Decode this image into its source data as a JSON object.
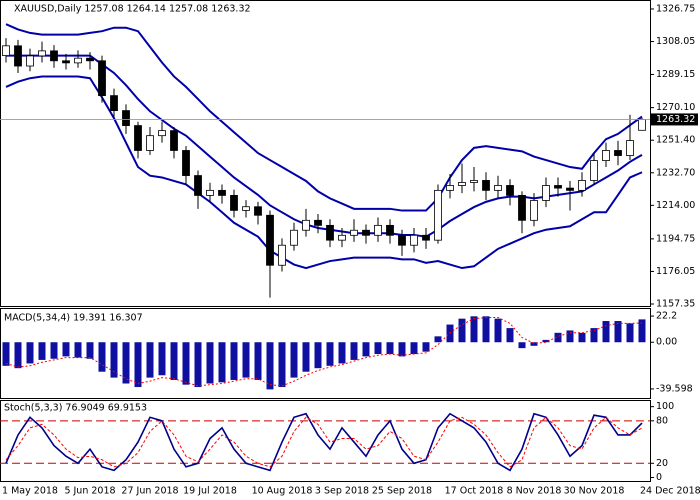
{
  "chart_data": [
    {
      "type": "candlestick",
      "title": "XAUUSD,Daily  1257.08 1264.14 1257.08 1263.32",
      "categories": [
        null,
        null,
        "1 May 2018",
        null,
        null,
        null,
        null,
        "5 Jun 2018",
        null,
        null,
        null,
        null,
        "27 Jun 2018",
        null,
        null,
        null,
        null,
        "19 Jul 2018",
        null,
        null,
        null,
        null,
        null,
        "10 Aug 2018",
        null,
        null,
        null,
        null,
        "3 Sep 2018",
        null,
        null,
        null,
        null,
        "25 Sep 2018",
        null,
        null,
        null,
        null,
        null,
        "17 Oct 2018",
        null,
        null,
        null,
        null,
        "8 Nov 2018",
        null,
        null,
        null,
        null,
        "30 Nov 2018",
        null,
        null,
        null,
        "24 Dec 2018"
      ],
      "open": [
        1300,
        1305.6,
        1294.0,
        1299.8,
        1302.7,
        1297.0,
        1295.8,
        1298.5,
        1297.0,
        1277.0,
        1268.4,
        1259.8,
        1245.5,
        1254.0,
        1256.9,
        1245.5,
        1231.1,
        1219.7,
        1222.6,
        1219.7,
        1211.1,
        1213.2,
        1208.3,
        1179.6,
        1191.1,
        1199.7,
        1205.4,
        1202.5,
        1194.0,
        1196.8,
        1199.7,
        1196.8,
        1202.5,
        1196.8,
        1191.1,
        1196.8,
        1194.0,
        1222.6,
        1225.4,
        1227.1,
        1228.3,
        1222.6,
        1225.4,
        1219.7,
        1205.4,
        1216.8,
        1225.4,
        1223.9,
        1222.6,
        1228.3,
        1239.7,
        1245.5,
        1242.6,
        1257.08
      ],
      "high": [
        1310,
        1309,
        1304,
        1308,
        1306,
        1301,
        1303,
        1302,
        1300,
        1281,
        1272,
        1262,
        1259,
        1262,
        1259,
        1248,
        1234,
        1227,
        1226,
        1223,
        1217,
        1216,
        1211,
        1195,
        1204,
        1212,
        1209,
        1206,
        1201,
        1206,
        1203,
        1207,
        1206,
        1200,
        1201,
        1201,
        1226,
        1232,
        1238,
        1236,
        1233,
        1231,
        1229,
        1222,
        1221,
        1230,
        1230,
        1228,
        1233,
        1244,
        1250,
        1251,
        1266,
        1264.14
      ],
      "low": [
        1296,
        1290,
        1291,
        1296,
        1293,
        1292,
        1293,
        1292,
        1273,
        1264,
        1255,
        1241,
        1243,
        1250,
        1241,
        1226,
        1212,
        1216,
        1215,
        1207,
        1207,
        1203,
        1161,
        1176,
        1188,
        1196,
        1198,
        1190,
        1190,
        1193,
        1192,
        1193,
        1192,
        1185,
        1187,
        1189,
        1192,
        1218,
        1221,
        1222,
        1217,
        1218,
        1214,
        1198,
        1202,
        1213,
        1219,
        1211,
        1219,
        1226,
        1236,
        1237,
        1240,
        1257.08
      ],
      "close": [
        1305.6,
        1294.0,
        1299.8,
        1302.7,
        1297.0,
        1295.8,
        1298.5,
        1297.0,
        1277.0,
        1268.4,
        1259.8,
        1245.5,
        1254.0,
        1256.9,
        1245.5,
        1231.1,
        1219.7,
        1222.6,
        1219.7,
        1211.1,
        1213.2,
        1208.3,
        1179.6,
        1191.1,
        1199.7,
        1205.4,
        1202.5,
        1194.0,
        1196.8,
        1199.7,
        1196.8,
        1202.5,
        1196.8,
        1191.1,
        1196.8,
        1194.0,
        1222.6,
        1225.4,
        1227.1,
        1228.3,
        1222.6,
        1225.4,
        1219.7,
        1205.4,
        1216.8,
        1225.4,
        1223.9,
        1222.6,
        1228.3,
        1239.7,
        1245.5,
        1242.6,
        1251.2,
        1263.32
      ],
      "bands": [
        {
          "color": "#0000a8",
          "values": [
            1318,
            1315,
            1313,
            1312,
            1312,
            1312,
            1312,
            1313,
            1314,
            1316,
            1316,
            1314,
            1305,
            1296,
            1288,
            1282,
            1275,
            1268,
            1262,
            1256,
            1250,
            1244,
            1240,
            1236,
            1232,
            1228,
            1222,
            1218,
            1215,
            1212,
            1212,
            1212,
            1212,
            1211,
            1211,
            1211,
            1218,
            1230,
            1240,
            1247,
            1248,
            1247,
            1246,
            1245,
            1242,
            1240,
            1238,
            1236,
            1235,
            1244,
            1252,
            1255,
            1260,
            1265
          ]
        },
        {
          "color": "#0000a8",
          "values": [
            1300,
            1300,
            1300,
            1300,
            1300,
            1300,
            1300,
            1300,
            1295,
            1290,
            1283,
            1275,
            1268,
            1263,
            1258,
            1254,
            1248,
            1242,
            1236,
            1230,
            1225,
            1220,
            1214,
            1210,
            1206,
            1203,
            1201,
            1200,
            1199,
            1198,
            1198,
            1198,
            1198,
            1197,
            1197,
            1196,
            1200,
            1205,
            1209,
            1213,
            1216,
            1218,
            1219,
            1219,
            1218,
            1219,
            1220,
            1221,
            1222,
            1226,
            1230,
            1234,
            1239,
            1243
          ]
        },
        {
          "color": "#0000a8",
          "values": [
            1282,
            1285,
            1287,
            1288,
            1288,
            1288,
            1288,
            1287,
            1276,
            1264,
            1250,
            1236,
            1231,
            1230,
            1228,
            1226,
            1221,
            1216,
            1210,
            1204,
            1200,
            1196,
            1188,
            1184,
            1180,
            1178,
            1180,
            1182,
            1183,
            1184,
            1184,
            1184,
            1184,
            1183,
            1183,
            1181,
            1182,
            1180,
            1178,
            1179,
            1184,
            1189,
            1192,
            1195,
            1198,
            1200,
            1201,
            1202,
            1206,
            1210,
            1210,
            1220,
            1230,
            1233
          ]
        }
      ],
      "last_price": 1263.32,
      "ylim": [
        1156.2,
        1331.33
      ],
      "yticks": [
        1326.75,
        1308.05,
        1289.15,
        {
          "value": 1270.1,
          "label": "1270.10"
        },
        {
          "value": 1251.4,
          "label": "1251.40"
        },
        {
          "value": 1232.7,
          "label": "1232.70"
        },
        {
          "value": 1214,
          "label": "1214.00"
        },
        1194.75,
        1176.05,
        1157.35
      ]
    },
    {
      "type": "macd",
      "title": "MACD(5,34,4) 19.391 16.307",
      "color": "#1010a0",
      "values": [
        -20,
        -22,
        -18,
        -15,
        -14,
        -12,
        -13,
        -14,
        -25,
        -30,
        -35,
        -38,
        -30,
        -28,
        -32,
        -36,
        -38,
        -35,
        -34,
        -32,
        -30,
        -32,
        -40,
        -38,
        -30,
        -25,
        -22,
        -20,
        -18,
        -15,
        -12,
        -10,
        -10,
        -12,
        -10,
        -8,
        5,
        15,
        20,
        22,
        22,
        20,
        12,
        -5,
        -3,
        2,
        8,
        10,
        8,
        12,
        18,
        18,
        16,
        19.391
      ],
      "signal": {
        "color": "#ff0000",
        "values": [
          -18,
          -21,
          -20,
          -17,
          -15,
          -13,
          -13,
          -13,
          -19,
          -25,
          -31,
          -35,
          -33,
          -30,
          -31,
          -34,
          -37,
          -36,
          -35,
          -33,
          -31,
          -31,
          -36,
          -37,
          -33,
          -28,
          -24,
          -21,
          -19,
          -16,
          -13,
          -11,
          -10,
          -11,
          -10,
          -9,
          -2,
          8,
          15,
          20,
          21,
          21,
          16,
          4,
          -1,
          0,
          5,
          8,
          8,
          10,
          14,
          16,
          16,
          16.307
        ]
      },
      "ylim": [
        -47.3,
        28.2
      ],
      "yticks": [
        22.2,
        {
          "value": 0,
          "label": "0.00"
        },
        -39.598
      ]
    },
    {
      "type": "stochastic",
      "title": "Stoch(5,3,3) 76.9049 69.9153",
      "series": [
        {
          "color": "#00008b",
          "values": [
            20,
            60,
            85,
            70,
            45,
            30,
            20,
            40,
            15,
            10,
            25,
            50,
            85,
            80,
            40,
            15,
            20,
            55,
            70,
            40,
            20,
            15,
            10,
            50,
            85,
            90,
            60,
            40,
            70,
            50,
            30,
            60,
            80,
            40,
            20,
            25,
            70,
            90,
            80,
            70,
            50,
            20,
            10,
            40,
            90,
            85,
            60,
            30,
            45,
            88,
            85,
            60,
            60,
            76.9049
          ]
        },
        {
          "color": "#ff0000",
          "values": [
            25,
            45,
            70,
            75,
            60,
            40,
            28,
            30,
            25,
            15,
            20,
            35,
            65,
            80,
            60,
            30,
            22,
            40,
            60,
            50,
            30,
            20,
            15,
            30,
            65,
            85,
            75,
            50,
            55,
            55,
            40,
            45,
            65,
            55,
            30,
            25,
            50,
            80,
            85,
            75,
            60,
            35,
            15,
            25,
            70,
            85,
            70,
            45,
            40,
            70,
            85,
            70,
            60,
            69.9153
          ]
        }
      ],
      "levels": [
        80,
        20
      ],
      "level_color": "#cc0000",
      "ylim": [
        -5,
        108
      ],
      "yticks": [
        100,
        80,
        20,
        0
      ]
    }
  ]
}
